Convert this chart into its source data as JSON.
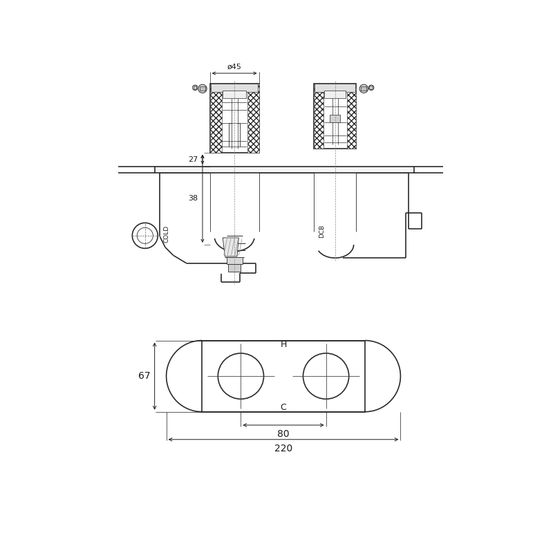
{
  "bg_color": "#ffffff",
  "line_color": "#2a2a2a",
  "dim_color": "#1a1a1a",
  "dim_45": "ø45",
  "dim_27": "27",
  "dim_38": "38",
  "dim_67": "67",
  "dim_80": "80",
  "dim_220": "220",
  "label_cold": "COLD",
  "label_dcb": "DCB",
  "label_h": "H",
  "label_c": "C",
  "lw_main": 1.2,
  "lw_thin": 0.6,
  "lw_dim": 0.7
}
